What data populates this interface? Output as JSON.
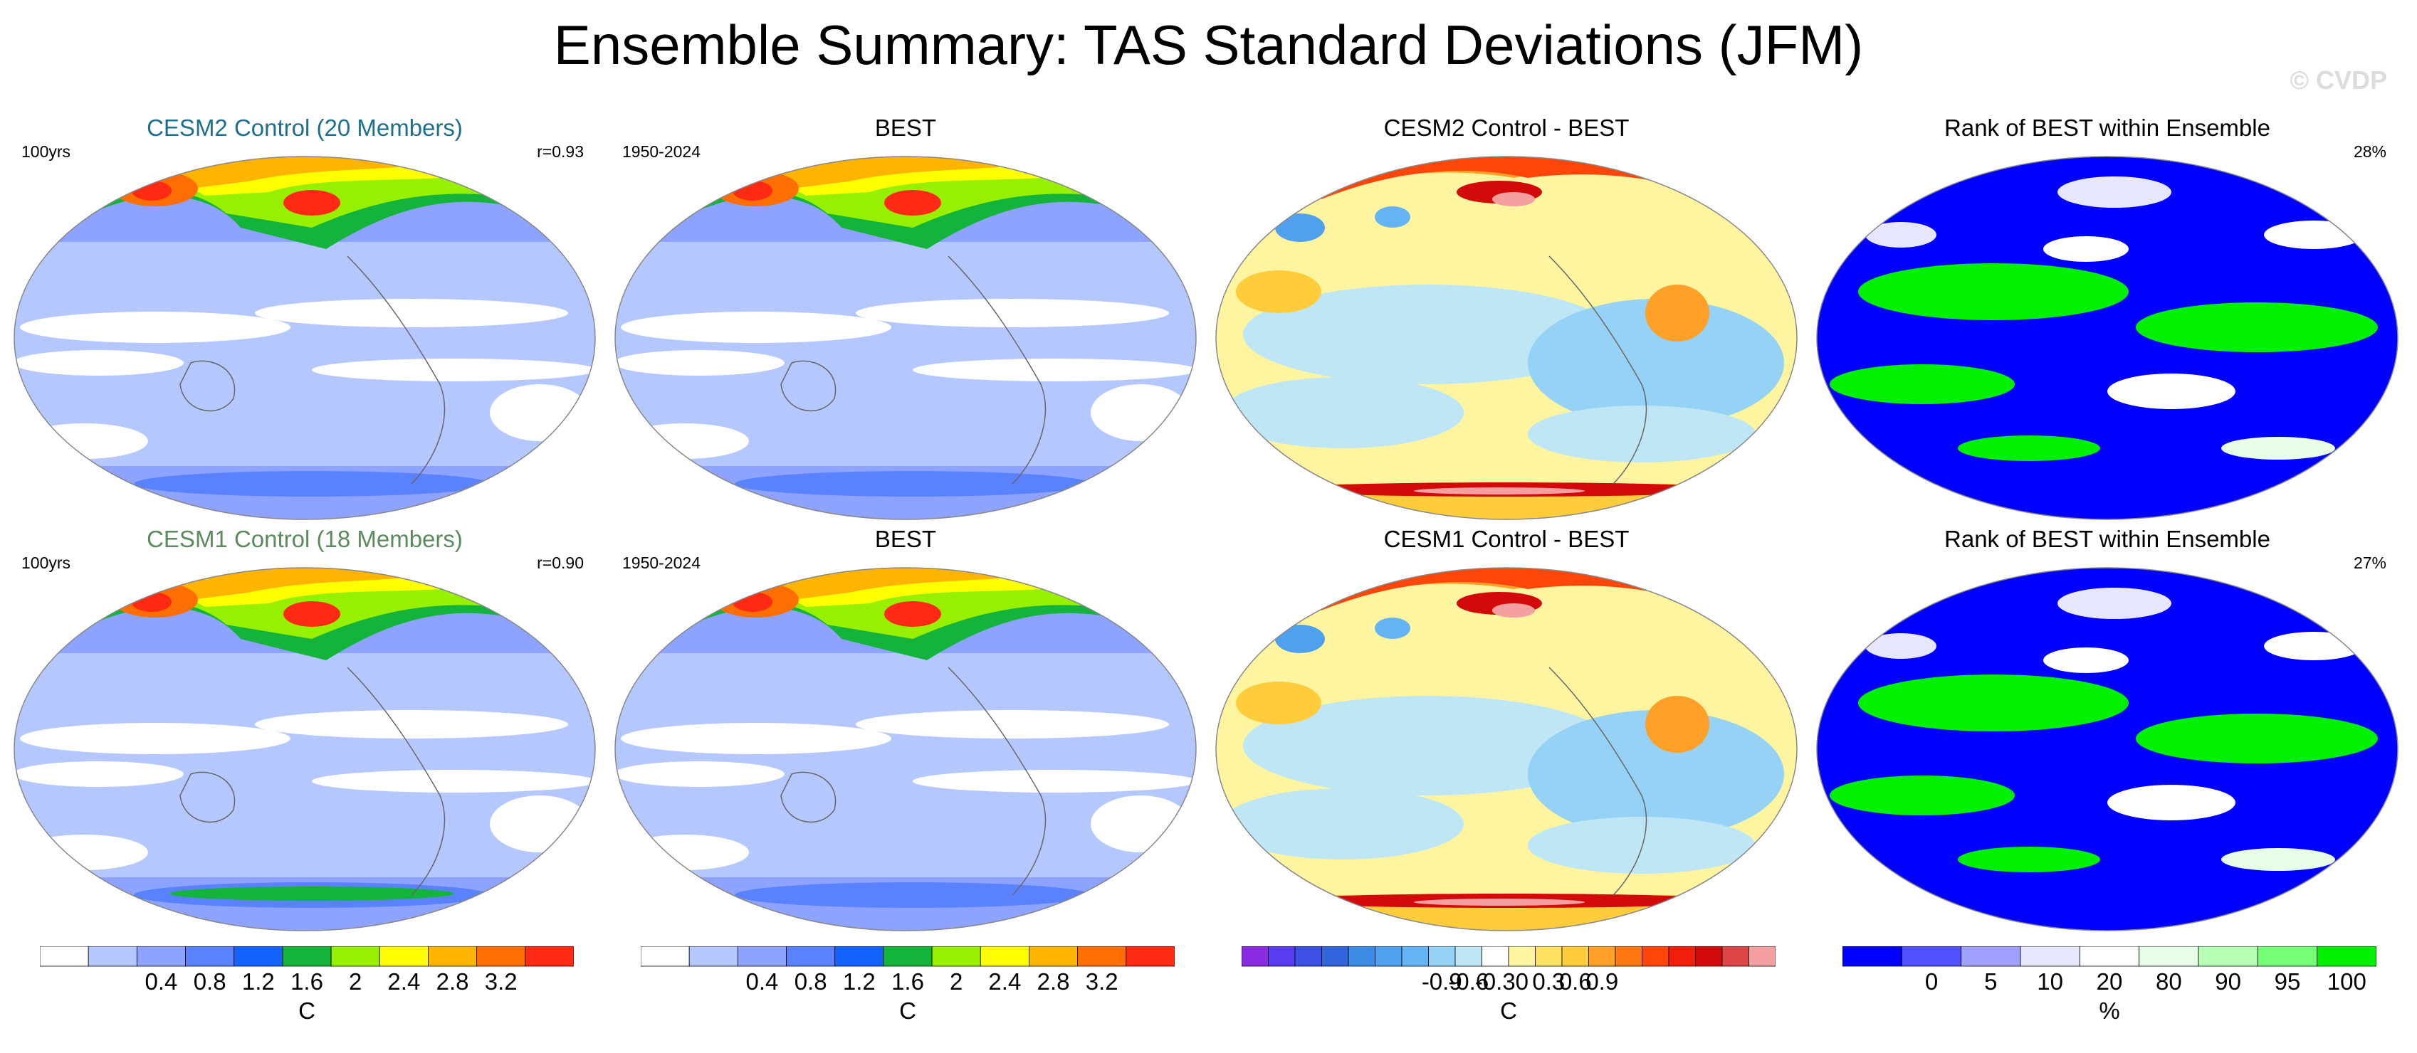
{
  "title": "Ensemble Summary: TAS Standard Deviations (JFM)",
  "watermark": "© CVDP",
  "panels": [
    {
      "title": "CESM2 Control (20 Members)",
      "title_color": "#1d6f8a",
      "left_label": "100yrs",
      "right_label": "r=0.93",
      "palette": "std",
      "row": 0,
      "col": 0
    },
    {
      "title": "BEST",
      "title_color": "#000000",
      "left_label": "1950-2024",
      "right_label": "",
      "palette": "std",
      "row": 0,
      "col": 1
    },
    {
      "title": "CESM2 Control - BEST",
      "title_color": "#000000",
      "left_label": "",
      "right_label": "",
      "palette": "diff",
      "row": 0,
      "col": 2
    },
    {
      "title": "Rank of BEST within Ensemble",
      "title_color": "#000000",
      "left_label": "",
      "right_label": "28%",
      "palette": "rank",
      "row": 0,
      "col": 3
    },
    {
      "title": "CESM1 Control (18 Members)",
      "title_color": "#5c8a5c",
      "left_label": "100yrs",
      "right_label": "r=0.90",
      "palette": "std",
      "row": 1,
      "col": 0
    },
    {
      "title": "BEST",
      "title_color": "#000000",
      "left_label": "1950-2024",
      "right_label": "",
      "palette": "std",
      "row": 1,
      "col": 1
    },
    {
      "title": "CESM1 Control - BEST",
      "title_color": "#000000",
      "left_label": "",
      "right_label": "",
      "palette": "diff",
      "row": 1,
      "col": 2
    },
    {
      "title": "Rank of BEST within Ensemble",
      "title_color": "#000000",
      "left_label": "",
      "right_label": "27%",
      "palette": "rank",
      "row": 1,
      "col": 3
    }
  ],
  "colorbars": [
    {
      "unit": "C",
      "colors": [
        "#ffffff",
        "#b4c7ff",
        "#8ea3ff",
        "#5a82ff",
        "#1563ff",
        "#14b43c",
        "#96f000",
        "#ffff00",
        "#ffb400",
        "#ff6e00",
        "#ff2a14"
      ],
      "labels": [
        "0.4",
        "0.8",
        "1.2",
        "1.6",
        "2",
        "2.4",
        "2.8",
        "3.2"
      ]
    },
    {
      "unit": "C",
      "colors": [
        "#ffffff",
        "#b4c7ff",
        "#8ea3ff",
        "#5a82ff",
        "#1563ff",
        "#14b43c",
        "#96f000",
        "#ffff00",
        "#ffb400",
        "#ff6e00",
        "#ff2a14"
      ],
      "labels": [
        "0.4",
        "0.8",
        "1.2",
        "1.6",
        "2",
        "2.4",
        "2.8",
        "3.2"
      ]
    },
    {
      "unit": "C",
      "colors": [
        "#8a2be2",
        "#5a3cf0",
        "#3c50e6",
        "#3264dc",
        "#3c8ce6",
        "#50a0f0",
        "#64b4f5",
        "#96d2f5",
        "#bee6f5",
        "#ffffff",
        "#fff5a0",
        "#ffe164",
        "#ffcd3c",
        "#ffa028",
        "#ff7814",
        "#ff460a",
        "#f01e0a",
        "#d20a0a",
        "#dc4646",
        "#f5a0a0"
      ],
      "labels": [
        "-0.9",
        "-0.6",
        "-0.3",
        "0",
        "0.3",
        "0.6",
        "0.9"
      ]
    },
    {
      "unit": "%",
      "colors": [
        "#0000ff",
        "#5050ff",
        "#a0a0ff",
        "#e6e6ff",
        "#ffffff",
        "#e6ffe6",
        "#b4ffb4",
        "#78ff78",
        "#00f000"
      ],
      "labels": [
        "0",
        "5",
        "10",
        "20",
        "80",
        "90",
        "95",
        "100"
      ]
    }
  ]
}
